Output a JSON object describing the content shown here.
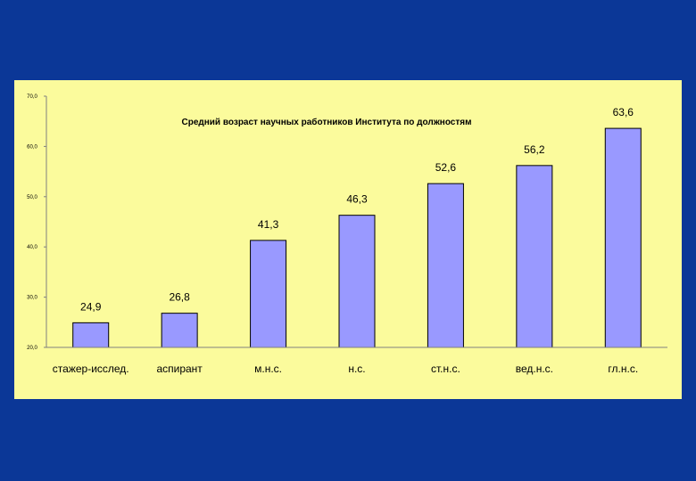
{
  "chart_data": {
    "type": "bar",
    "title": "Средний возраст научных работников Института по должностям",
    "xlabel": "",
    "ylabel": "",
    "categories": [
      "стажер-исслед.",
      "аспирант",
      "м.н.с.",
      "н.с.",
      "ст.н.с.",
      "вед.н.с.",
      "гл.н.с."
    ],
    "values": [
      24.9,
      26.8,
      41.3,
      46.3,
      52.6,
      56.2,
      63.6
    ],
    "value_labels": [
      "24,9",
      "26,8",
      "41,3",
      "46,3",
      "52,6",
      "56,2",
      "63,6"
    ],
    "ylim": [
      20,
      70
    ],
    "yticks": [
      20,
      30,
      40,
      50,
      60,
      70
    ],
    "ytick_labels": [
      "20,0",
      "30,0",
      "40,0",
      "50,0",
      "60,0",
      "70,0"
    ],
    "grid": false,
    "legend": "none",
    "colors": {
      "bar": "#9999ff",
      "plot_background": "#fbfb9c",
      "page_background": "#0b3797"
    }
  }
}
